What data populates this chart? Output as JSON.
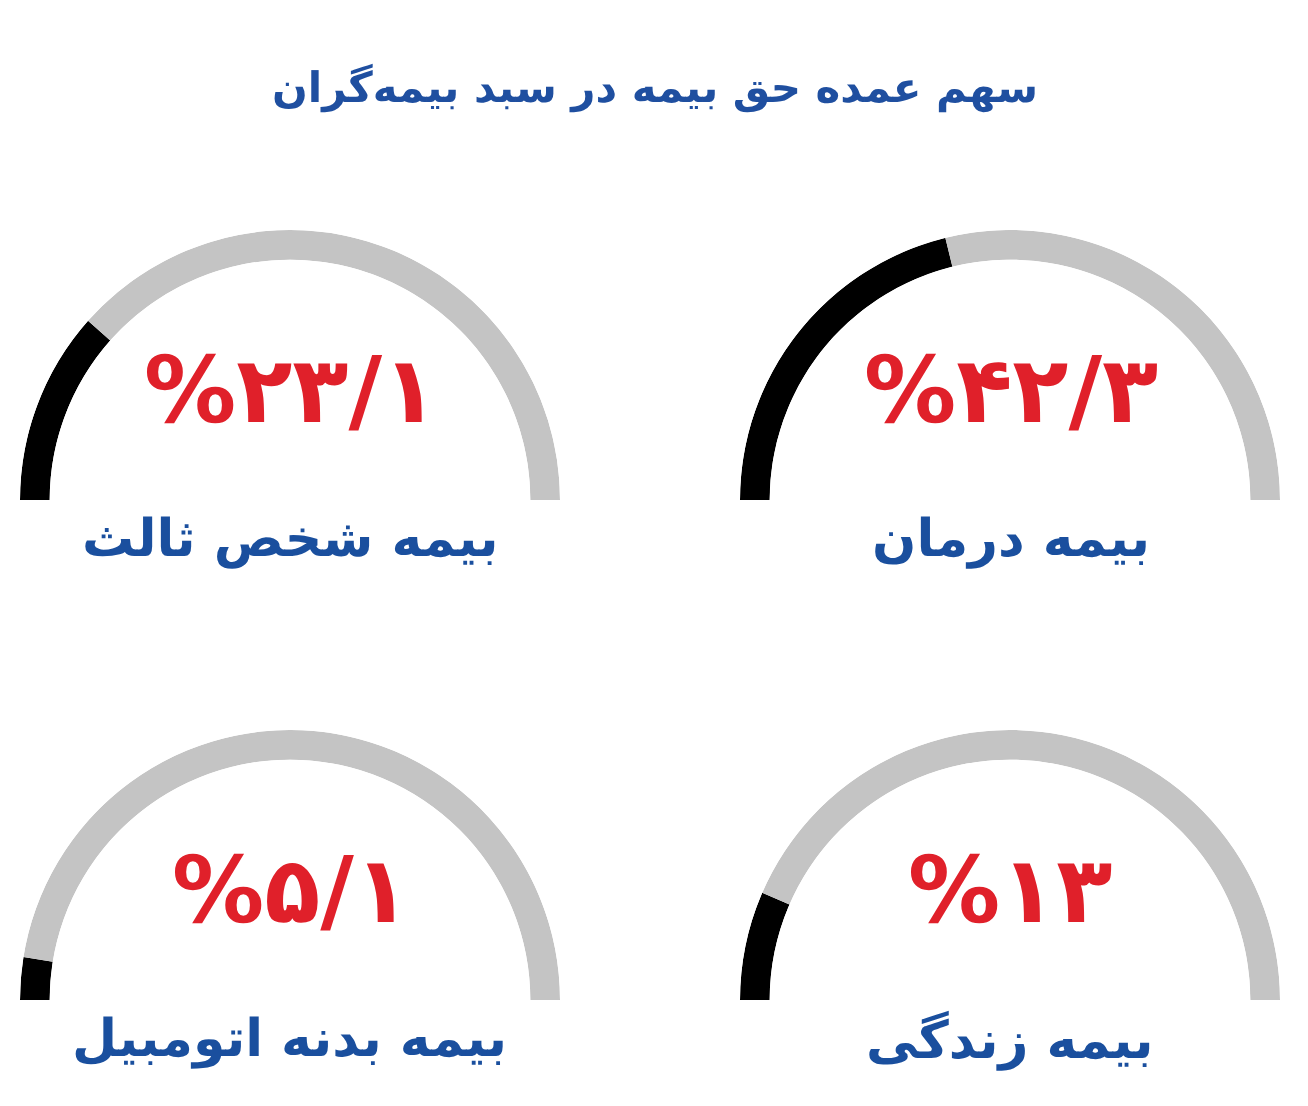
{
  "chart_data": [
    {
      "type": "other",
      "title": "سهم عمده حق بیمه در سبد بیمه‌گران"
    },
    {
      "type": "donut",
      "title": "بیمه درمان",
      "categories": [
        null,
        null
      ],
      "values": [
        42.3,
        57.7
      ],
      "colors": [
        "#000000",
        "#c4c4c4"
      ],
      "annotations": [
        "%۴۲/۳"
      ]
    },
    {
      "type": "donut",
      "title": "بیمه شخص ثالث",
      "categories": [
        null,
        null
      ],
      "values": [
        23.1,
        76.9
      ],
      "colors": [
        "#000000",
        "#c4c4c4"
      ],
      "annotations": [
        "%۲۳/۱"
      ]
    },
    {
      "type": "donut",
      "title": "بیمه زندگی",
      "categories": [
        null,
        null
      ],
      "values": [
        13,
        87
      ],
      "colors": [
        "#000000",
        "#c4c4c4"
      ],
      "annotations": [
        "%۱۳"
      ]
    },
    {
      "type": "donut",
      "title": "بیمه بدنه اتومبیل",
      "categories": [
        null,
        null
      ],
      "values": [
        5.1,
        94.9
      ],
      "colors": [
        "#000000",
        "#c4c4c4"
      ],
      "annotations": [
        "%۵/۱"
      ]
    }
  ]
}
